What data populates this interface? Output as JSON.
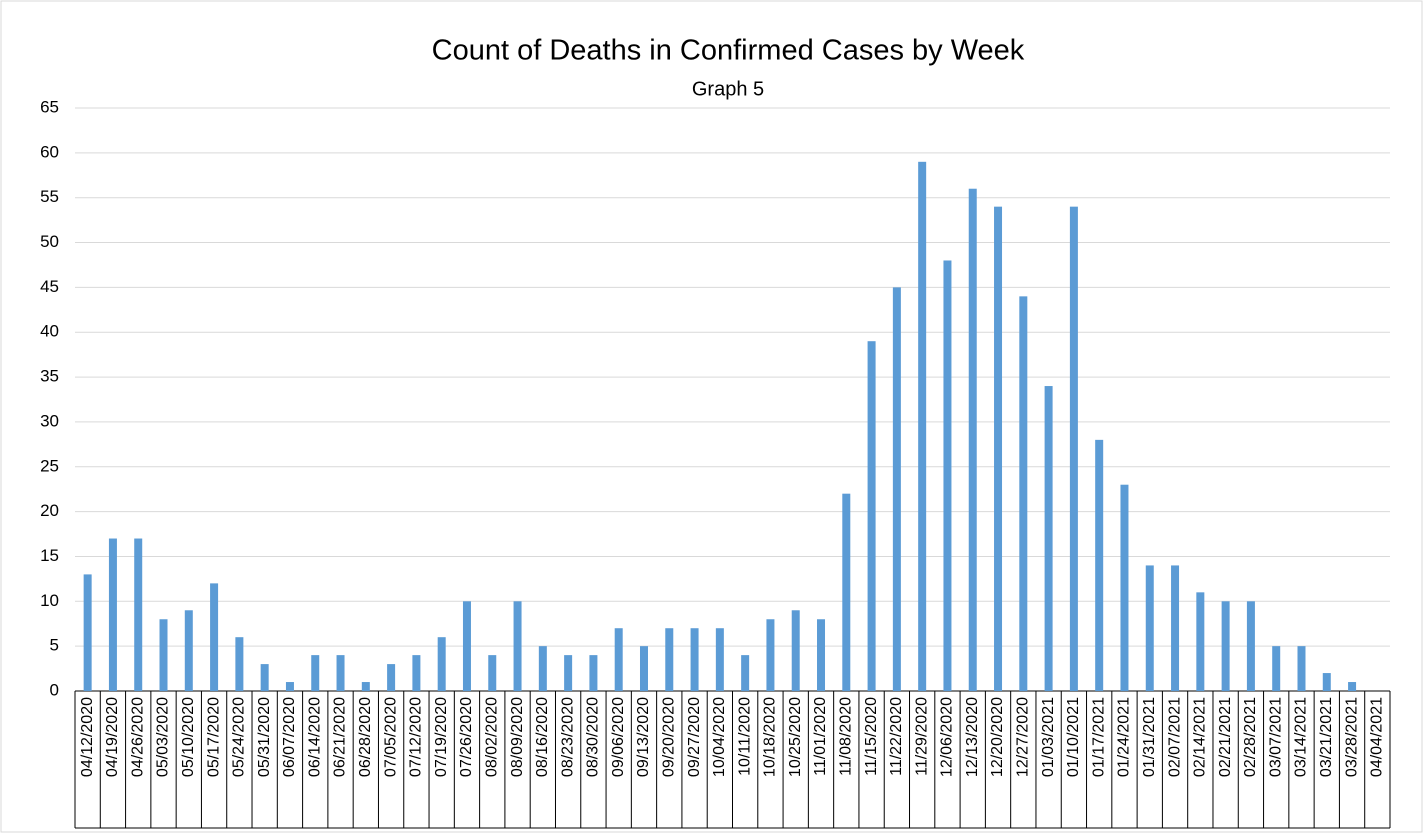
{
  "chart_data": {
    "type": "bar",
    "title": "Count of Deaths in Confirmed Cases by Week",
    "subtitle": "Graph 5",
    "categories": [
      "04/12/2020",
      "04/19/2020",
      "04/26/2020",
      "05/03/2020",
      "05/10/2020",
      "05/17/2020",
      "05/24/2020",
      "05/31/2020",
      "06/07/2020",
      "06/14/2020",
      "06/21/2020",
      "06/28/2020",
      "07/05/2020",
      "07/12/2020",
      "07/19/2020",
      "07/26/2020",
      "08/02/2020",
      "08/09/2020",
      "08/16/2020",
      "08/23/2020",
      "08/30/2020",
      "09/06/2020",
      "09/13/2020",
      "09/20/2020",
      "09/27/2020",
      "10/04/2020",
      "10/11/2020",
      "10/18/2020",
      "10/25/2020",
      "11/01/2020",
      "11/08/2020",
      "11/15/2020",
      "11/22/2020",
      "11/29/2020",
      "12/06/2020",
      "12/13/2020",
      "12/20/2020",
      "12/27/2020",
      "01/03/2021",
      "01/10/2021",
      "01/17/2021",
      "01/24/2021",
      "01/31/2021",
      "02/07/2021",
      "02/14/2021",
      "02/21/2021",
      "02/28/2021",
      "03/07/2021",
      "03/14/2021",
      "03/21/2021",
      "03/28/2021",
      "04/04/2021"
    ],
    "values": [
      13,
      17,
      17,
      8,
      9,
      12,
      6,
      3,
      1,
      4,
      4,
      1,
      3,
      4,
      6,
      10,
      4,
      10,
      5,
      4,
      4,
      7,
      5,
      7,
      7,
      7,
      4,
      8,
      9,
      8,
      22,
      39,
      45,
      59,
      48,
      56,
      54,
      44,
      34,
      54,
      28,
      23,
      14,
      14,
      11,
      10,
      10,
      5,
      5,
      2,
      1,
      0
    ],
    "color": "#5b9bd5",
    "ylim": [
      0,
      65
    ],
    "yticks": [
      0,
      5,
      10,
      15,
      20,
      25,
      30,
      35,
      40,
      45,
      50,
      55,
      60,
      65
    ],
    "grid": true
  }
}
